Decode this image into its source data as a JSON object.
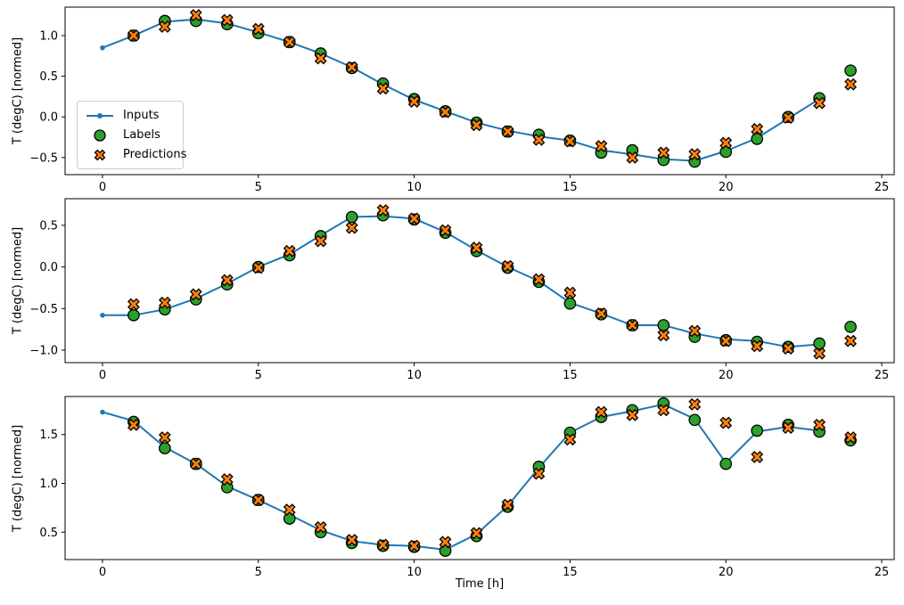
{
  "figure": {
    "ylabel": "T (degC) [normed]",
    "xlabel": "Time [h]",
    "colors": {
      "inputs": "#1f77b4",
      "labels": "#2ca02c",
      "predictions": "#ff7f0e",
      "marker_edge": "#000000",
      "frame": "#000000",
      "tick_text": "#000000"
    },
    "legend": {
      "items": [
        {
          "label": "Inputs"
        },
        {
          "label": "Labels"
        },
        {
          "label": "Predictions"
        }
      ]
    }
  },
  "chart_data": [
    {
      "type": "line",
      "subplot": 1,
      "ylabel": "T (degC) [normed]",
      "xlabel": "",
      "grid": false,
      "legend_position": "center-left-of-first-subplot",
      "xlim": [
        -1.2,
        25.4
      ],
      "ylim": [
        -0.71,
        1.35
      ],
      "xtick_values": [
        0,
        5,
        10,
        15,
        20,
        25
      ],
      "xtick_labels": [
        "0",
        "5",
        "10",
        "15",
        "20",
        "25"
      ],
      "ytick_values": [
        1.0,
        0.5,
        0.0,
        -0.5
      ],
      "ytick_labels": [
        "1.0",
        "0.5",
        "0.0",
        "−0.5"
      ],
      "series": [
        {
          "name": "Inputs",
          "marker": "line-dot",
          "x": [
            0,
            1,
            2,
            3,
            4,
            5,
            6,
            7,
            8,
            9,
            10,
            11,
            12,
            13,
            14,
            15,
            16,
            17,
            18,
            19,
            20,
            21,
            22,
            23
          ],
          "y": [
            0.85,
            1.0,
            1.17,
            1.2,
            1.15,
            1.04,
            0.92,
            0.78,
            0.61,
            0.4,
            0.21,
            0.07,
            -0.07,
            -0.17,
            -0.24,
            -0.29,
            -0.41,
            -0.46,
            -0.52,
            -0.54,
            -0.42,
            -0.26,
            -0.02,
            0.22
          ]
        },
        {
          "name": "Labels",
          "marker": "circle",
          "x": [
            1,
            2,
            3,
            4,
            5,
            6,
            7,
            8,
            9,
            10,
            11,
            12,
            13,
            14,
            15,
            16,
            17,
            18,
            19,
            20,
            21,
            22,
            23,
            24
          ],
          "y": [
            1.0,
            1.18,
            1.18,
            1.14,
            1.03,
            0.92,
            0.78,
            0.6,
            0.41,
            0.22,
            0.07,
            -0.07,
            -0.18,
            -0.22,
            -0.29,
            -0.44,
            -0.41,
            -0.53,
            -0.55,
            -0.43,
            -0.27,
            0.0,
            0.23,
            0.57
          ]
        },
        {
          "name": "Predictions",
          "marker": "X",
          "x": [
            1,
            2,
            3,
            4,
            5,
            6,
            7,
            8,
            9,
            10,
            11,
            12,
            13,
            14,
            15,
            16,
            17,
            18,
            19,
            20,
            21,
            22,
            23,
            24
          ],
          "y": [
            1.0,
            1.11,
            1.25,
            1.19,
            1.08,
            0.92,
            0.72,
            0.61,
            0.35,
            0.19,
            0.06,
            -0.1,
            -0.18,
            -0.28,
            -0.3,
            -0.36,
            -0.5,
            -0.44,
            -0.46,
            -0.32,
            -0.15,
            -0.01,
            0.17,
            0.4
          ]
        }
      ]
    },
    {
      "type": "line",
      "subplot": 2,
      "ylabel": "T (degC) [normed]",
      "xlabel": "",
      "grid": false,
      "xlim": [
        -1.2,
        25.4
      ],
      "ylim": [
        -1.15,
        0.82
      ],
      "xtick_values": [
        0,
        5,
        10,
        15,
        20,
        25
      ],
      "xtick_labels": [
        "0",
        "5",
        "10",
        "15",
        "20",
        "25"
      ],
      "ytick_values": [
        0.5,
        0.0,
        -0.5,
        -1.0
      ],
      "ytick_labels": [
        "0.5",
        "0.0",
        "−0.5",
        "−1.0"
      ],
      "series": [
        {
          "name": "Inputs",
          "marker": "line-dot",
          "x": [
            0,
            1,
            2,
            3,
            4,
            5,
            6,
            7,
            8,
            9,
            10,
            11,
            12,
            13,
            14,
            15,
            16,
            17,
            18,
            19,
            20,
            21,
            22,
            23
          ],
          "y": [
            -0.58,
            -0.58,
            -0.51,
            -0.38,
            -0.2,
            0.0,
            0.15,
            0.38,
            0.6,
            0.61,
            0.58,
            0.42,
            0.2,
            0.0,
            -0.17,
            -0.43,
            -0.56,
            -0.7,
            -0.7,
            -0.8,
            -0.87,
            -0.89,
            -0.96,
            -0.93
          ]
        },
        {
          "name": "Labels",
          "marker": "circle",
          "x": [
            1,
            2,
            3,
            4,
            5,
            6,
            7,
            8,
            9,
            10,
            11,
            12,
            13,
            14,
            15,
            16,
            17,
            18,
            19,
            20,
            21,
            22,
            23,
            24
          ],
          "y": [
            -0.58,
            -0.51,
            -0.39,
            -0.21,
            0.0,
            0.14,
            0.37,
            0.6,
            0.62,
            0.57,
            0.41,
            0.19,
            -0.01,
            -0.18,
            -0.44,
            -0.57,
            -0.7,
            -0.7,
            -0.84,
            -0.88,
            -0.9,
            -0.96,
            -0.92,
            -0.72
          ]
        },
        {
          "name": "Predictions",
          "marker": "X",
          "x": [
            1,
            2,
            3,
            4,
            5,
            6,
            7,
            8,
            9,
            10,
            11,
            12,
            13,
            14,
            15,
            16,
            17,
            18,
            19,
            20,
            21,
            22,
            23,
            24
          ],
          "y": [
            -0.45,
            -0.43,
            -0.33,
            -0.16,
            -0.01,
            0.19,
            0.31,
            0.47,
            0.68,
            0.58,
            0.44,
            0.23,
            0.01,
            -0.15,
            -0.31,
            -0.56,
            -0.7,
            -0.82,
            -0.77,
            -0.89,
            -0.95,
            -0.98,
            -1.04,
            -0.89
          ]
        }
      ]
    },
    {
      "type": "line",
      "subplot": 3,
      "ylabel": "T (degC) [normed]",
      "xlabel": "Time [h]",
      "grid": false,
      "xlim": [
        -1.2,
        25.4
      ],
      "ylim": [
        0.22,
        1.89
      ],
      "xtick_values": [
        0,
        5,
        10,
        15,
        20,
        25
      ],
      "xtick_labels": [
        "0",
        "5",
        "10",
        "15",
        "20",
        "25"
      ],
      "ytick_values": [
        1.5,
        1.0,
        0.5
      ],
      "ytick_labels": [
        "1.5",
        "1.0",
        "0.5"
      ],
      "series": [
        {
          "name": "Inputs",
          "marker": "line-dot",
          "x": [
            0,
            1,
            2,
            3,
            4,
            5,
            6,
            7,
            8,
            9,
            10,
            11,
            12,
            13,
            14,
            15,
            16,
            17,
            18,
            19,
            20,
            21,
            22,
            23
          ],
          "y": [
            1.73,
            1.64,
            1.37,
            1.2,
            0.97,
            0.83,
            0.68,
            0.52,
            0.41,
            0.37,
            0.36,
            0.32,
            0.48,
            0.77,
            1.16,
            1.52,
            1.68,
            1.74,
            1.81,
            1.66,
            1.21,
            1.53,
            1.58,
            1.54
          ]
        },
        {
          "name": "Labels",
          "marker": "circle",
          "x": [
            1,
            2,
            3,
            4,
            5,
            6,
            7,
            8,
            9,
            10,
            11,
            12,
            13,
            14,
            15,
            16,
            17,
            18,
            19,
            20,
            21,
            22,
            23,
            24
          ],
          "y": [
            1.63,
            1.36,
            1.2,
            0.96,
            0.83,
            0.64,
            0.5,
            0.39,
            0.36,
            0.35,
            0.31,
            0.46,
            0.76,
            1.17,
            1.52,
            1.68,
            1.75,
            1.82,
            1.65,
            1.2,
            1.54,
            1.6,
            1.53,
            1.44
          ]
        },
        {
          "name": "Predictions",
          "marker": "X",
          "x": [
            1,
            2,
            3,
            4,
            5,
            6,
            7,
            8,
            9,
            10,
            11,
            12,
            13,
            14,
            15,
            16,
            17,
            18,
            19,
            20,
            21,
            22,
            23,
            24
          ],
          "y": [
            1.6,
            1.47,
            1.2,
            1.04,
            0.83,
            0.73,
            0.55,
            0.42,
            0.37,
            0.36,
            0.4,
            0.49,
            0.78,
            1.1,
            1.45,
            1.73,
            1.7,
            1.75,
            1.81,
            1.62,
            1.27,
            1.57,
            1.6,
            1.47
          ]
        }
      ]
    }
  ]
}
